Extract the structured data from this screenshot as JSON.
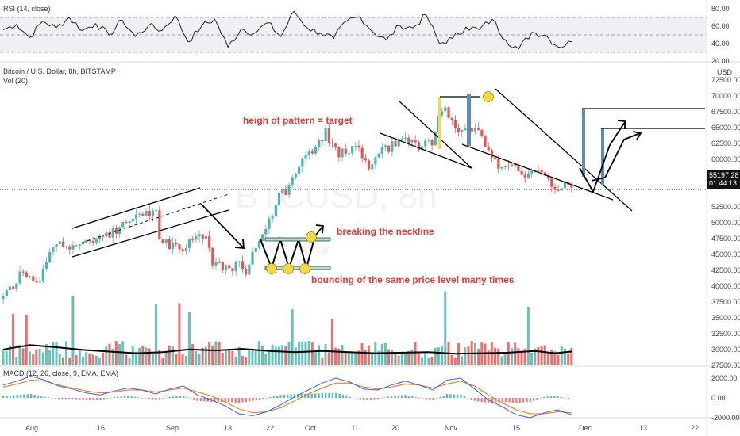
{
  "colors": {
    "bull": "#4db6ac",
    "bear": "#ef5350",
    "annotation": "#e53935",
    "drawing": "#000000",
    "macd_line": "#2962ff",
    "signal_line": "#ff6d00",
    "rsi_line": "#222222",
    "rsi_band": "#eef0f4",
    "price_badge": "#111111",
    "circle": "#f5d84a",
    "bar_blue": "#5b8db8",
    "bar_yellow": "#f5d84a"
  },
  "panes": {
    "rsi_title": "RSI (14, close)",
    "main_title": "Bitcoin / U.S. Dollar, 8h, BITSTAMP",
    "vol_title": "Vol (20)",
    "macd_title": "MACD (12, 26, close, 9, EMA, EMA)",
    "watermark": "BTCUSD, 8h",
    "watermark_sub": "U.S. Dollar",
    "currency": "USD"
  },
  "price_badge": {
    "value": "55197.28",
    "countdown": "01:44:13"
  },
  "annotations": {
    "target": "heigh of pattern = target",
    "neckline": "breaking the neckline",
    "bouncing": "bouncing of the same price level many times"
  },
  "chart_data": [
    {
      "type": "line",
      "title": "RSI (14, close)",
      "y_ticks": [
        "80.00",
        "60.00",
        "40.00",
        "20.00"
      ],
      "ylim": [
        20,
        85
      ],
      "guides": [
        70,
        50,
        30
      ],
      "series": [
        {
          "values": [
            56,
            62,
            47,
            66,
            58,
            70,
            55,
            63,
            50,
            67,
            48,
            61,
            55,
            72,
            42,
            60,
            68,
            36,
            57,
            52,
            64,
            48,
            77,
            58,
            52,
            46,
            66,
            71,
            53,
            44,
            61,
            58,
            73,
            40,
            46,
            59,
            56,
            68,
            44,
            34,
            53,
            50,
            36,
            42
          ]
        }
      ]
    },
    {
      "type": "candlestick",
      "title": "Bitcoin / U.S. Dollar, 8h, BITSTAMP",
      "y_ticks": [
        "72500.00",
        "70000.00",
        "67500.00",
        "65000.00",
        "62500.00",
        "60000.00",
        "57500.00",
        "52500.00",
        "50000.00",
        "47500.00",
        "45000.00",
        "42500.00",
        "40000.00",
        "37500.00",
        "35000.00",
        "32500.00",
        "30000.00",
        "27500.00"
      ],
      "x_ticks": [
        "Aug",
        "16",
        "Sep",
        "13",
        "22",
        "Oct",
        "11",
        "20",
        "Nov",
        "15",
        "Dec",
        "13",
        "22"
      ],
      "ylim": [
        26000,
        75000
      ],
      "last_price": 55197.28,
      "close_path": [
        [
          0,
          38000
        ],
        [
          2,
          39500
        ],
        [
          4,
          41000
        ],
        [
          6,
          42300
        ],
        [
          8,
          41000
        ],
        [
          10,
          40200
        ],
        [
          12,
          42500
        ],
        [
          14,
          45000
        ],
        [
          16,
          46300
        ],
        [
          18,
          46900
        ],
        [
          20,
          46000
        ],
        [
          22,
          46800
        ],
        [
          24,
          47400
        ],
        [
          26,
          47000
        ],
        [
          28,
          48100
        ],
        [
          30,
          47600
        ],
        [
          32,
          48200
        ],
        [
          34,
          49000
        ],
        [
          36,
          49500
        ],
        [
          38,
          49800
        ],
        [
          40,
          50600
        ],
        [
          42,
          51000
        ],
        [
          44,
          51800
        ],
        [
          46,
          52200
        ],
        [
          47,
          47800
        ],
        [
          49,
          46900
        ],
        [
          51,
          46100
        ],
        [
          53,
          45500
        ],
        [
          55,
          46600
        ],
        [
          57,
          47600
        ],
        [
          59,
          48100
        ],
        [
          61,
          47400
        ],
        [
          63,
          43800
        ],
        [
          65,
          43000
        ],
        [
          67,
          43500
        ],
        [
          69,
          42900
        ],
        [
          71,
          43600
        ],
        [
          73,
          42300
        ],
        [
          75,
          44800
        ],
        [
          77,
          47200
        ],
        [
          79,
          48400
        ],
        [
          81,
          51700
        ],
        [
          83,
          54200
        ],
        [
          85,
          55000
        ],
        [
          87,
          57500
        ],
        [
          89,
          58200
        ],
        [
          91,
          60600
        ],
        [
          93,
          61400
        ],
        [
          95,
          62700
        ],
        [
          97,
          64300
        ],
        [
          99,
          62100
        ],
        [
          101,
          60900
        ],
        [
          103,
          61200
        ],
        [
          105,
          62300
        ],
        [
          107,
          61600
        ],
        [
          109,
          59400
        ],
        [
          111,
          58700
        ],
        [
          113,
          60800
        ],
        [
          115,
          61500
        ],
        [
          117,
          62400
        ],
        [
          119,
          63100
        ],
        [
          121,
          63600
        ],
        [
          123,
          62300
        ],
        [
          125,
          61700
        ],
        [
          127,
          62400
        ],
        [
          129,
          62900
        ],
        [
          131,
          66800
        ],
        [
          133,
          67500
        ],
        [
          135,
          66300
        ],
        [
          137,
          64600
        ],
        [
          139,
          64300
        ],
        [
          141,
          64700
        ],
        [
          143,
          64100
        ],
        [
          145,
          62600
        ],
        [
          147,
          60000
        ],
        [
          149,
          59200
        ],
        [
          151,
          58400
        ],
        [
          153,
          59800
        ],
        [
          155,
          57900
        ],
        [
          157,
          56500
        ],
        [
          159,
          57900
        ],
        [
          161,
          58300
        ],
        [
          163,
          57300
        ],
        [
          165,
          55600
        ],
        [
          167,
          54500
        ],
        [
          169,
          56200
        ],
        [
          171,
          55197
        ]
      ],
      "volume": {
        "ma_path": [
          [
            0,
            28800
          ],
          [
            8,
            29600
          ],
          [
            16,
            29200
          ],
          [
            24,
            28700
          ],
          [
            32,
            28400
          ],
          [
            40,
            28100
          ],
          [
            48,
            28300
          ],
          [
            56,
            28800
          ],
          [
            64,
            28600
          ],
          [
            72,
            28900
          ],
          [
            80,
            28500
          ],
          [
            88,
            28300
          ],
          [
            96,
            28500
          ],
          [
            104,
            28300
          ],
          [
            112,
            28100
          ],
          [
            120,
            28200
          ],
          [
            128,
            28300
          ],
          [
            136,
            28000
          ],
          [
            144,
            28100
          ],
          [
            152,
            28200
          ],
          [
            160,
            28500
          ],
          [
            166,
            28100
          ],
          [
            171,
            28400
          ]
        ]
      }
    },
    {
      "type": "bar",
      "title": "MACD (12, 26, close, 9, EMA, EMA)",
      "y_ticks": [
        "2000.00",
        "0.00",
        "-2000.00"
      ],
      "ylim": [
        -2500,
        2600
      ],
      "macd_line": [
        1300,
        1700,
        2200,
        1800,
        1200,
        900,
        500,
        300,
        700,
        1000,
        800,
        400,
        900,
        1200,
        300,
        -200,
        -800,
        -1600,
        -1800,
        -1400,
        -700,
        100,
        800,
        1500,
        2000,
        1600,
        900,
        800,
        1300,
        1700,
        1300,
        800,
        1800,
        2000,
        900,
        -200,
        -900,
        -1700,
        -2000,
        -1500,
        -1200,
        -1700
      ],
      "signal_line": [
        1100,
        1400,
        1800,
        1700,
        1300,
        1000,
        700,
        500,
        600,
        800,
        800,
        600,
        800,
        1000,
        600,
        200,
        -400,
        -1100,
        -1500,
        -1400,
        -1000,
        -300,
        400,
        1000,
        1500,
        1500,
        1100,
        900,
        1100,
        1400,
        1300,
        1000,
        1400,
        1700,
        1200,
        300,
        -500,
        -1200,
        -1600,
        -1600,
        -1400,
        -1500
      ]
    }
  ]
}
